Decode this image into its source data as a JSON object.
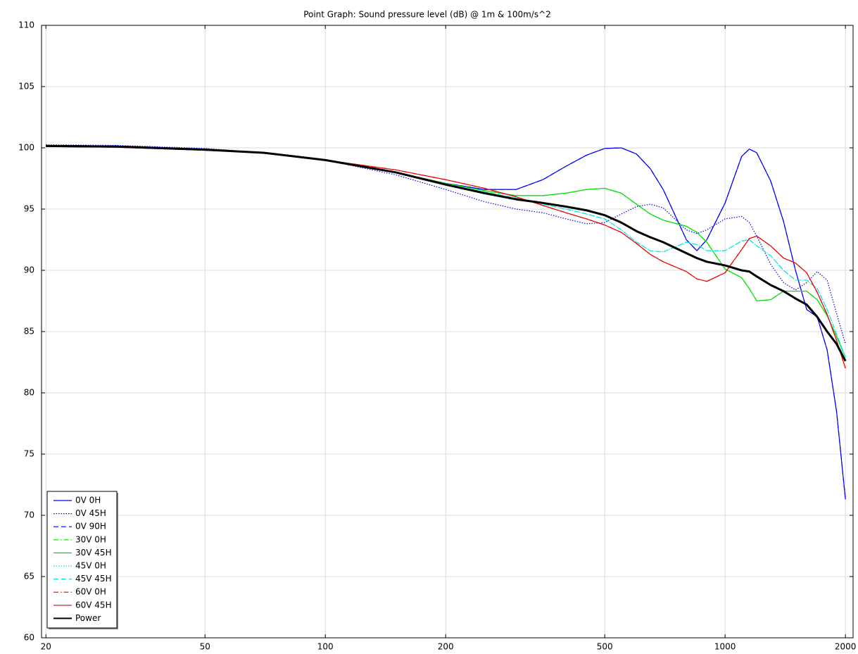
{
  "chart_data": {
    "type": "line",
    "title": "Point Graph: Sound pressure level (dB) @ 1m & 100m/s^2",
    "x": [
      20,
      30,
      50,
      70,
      100,
      150,
      200,
      250,
      300,
      350,
      400,
      450,
      500,
      550,
      600,
      650,
      700,
      800,
      850,
      900,
      1000,
      1100,
      1150,
      1200,
      1300,
      1400,
      1500,
      1600,
      1700,
      1800,
      1900,
      2000
    ],
    "series": [
      {
        "name": "0V 0H",
        "color": "#0000ff",
        "dash": "solid",
        "linewidth": 1.2,
        "values": [
          100.2,
          100.15,
          99.9,
          99.6,
          99.0,
          98.0,
          97.1,
          96.6,
          96.6,
          97.4,
          98.5,
          99.4,
          99.95,
          100.0,
          99.5,
          98.3,
          96.6,
          92.5,
          91.6,
          92.5,
          95.5,
          99.3,
          99.9,
          99.6,
          97.3,
          94.0,
          90.0,
          86.8,
          86.2,
          83.5,
          78.5,
          71.3
        ]
      },
      {
        "name": "0V 45H",
        "color": "#0000ff",
        "dash": "dotted",
        "linewidth": 1.2,
        "values": [
          100.25,
          100.2,
          99.95,
          99.6,
          99.0,
          97.8,
          96.6,
          95.6,
          95.0,
          94.7,
          94.2,
          93.8,
          93.9,
          94.6,
          95.2,
          95.4,
          95.1,
          93.3,
          93.0,
          93.3,
          94.2,
          94.4,
          93.9,
          92.8,
          90.5,
          89.0,
          88.4,
          89.0,
          89.9,
          89.2,
          86.5,
          84.0
        ]
      },
      {
        "name": "0V 90H",
        "color": "#0000ff",
        "dash": "dashed",
        "linewidth": 1.2,
        "values": [
          100.2,
          100.15,
          99.9,
          99.6,
          99.0,
          98.0,
          97.1,
          96.6,
          96.6,
          97.4,
          98.5,
          99.4,
          99.95,
          100.0,
          99.5,
          98.3,
          96.6,
          92.5,
          91.6,
          92.5,
          95.5,
          99.3,
          99.9,
          99.6,
          97.3,
          94.0,
          90.0,
          86.8,
          86.2,
          83.5,
          78.5,
          71.3
        ]
      },
      {
        "name": "30V 0H",
        "color": "#00dd00",
        "dash": "dashdot",
        "linewidth": 1.2,
        "values": [
          100.15,
          100.1,
          99.9,
          99.6,
          99.0,
          98.0,
          97.1,
          96.5,
          96.1,
          96.1,
          96.3,
          96.6,
          96.7,
          96.3,
          95.4,
          94.6,
          94.1,
          93.6,
          93.1,
          92.3,
          90.1,
          89.4,
          88.5,
          87.5,
          87.6,
          88.3,
          88.3,
          88.3,
          87.6,
          86.3,
          84.6,
          82.9
        ]
      },
      {
        "name": "30V 45H",
        "color": "#00dd00",
        "dash": "solid",
        "linewidth": 1.2,
        "values": [
          100.15,
          100.1,
          99.9,
          99.6,
          99.0,
          98.0,
          97.1,
          96.5,
          96.1,
          96.1,
          96.3,
          96.6,
          96.7,
          96.3,
          95.4,
          94.6,
          94.1,
          93.6,
          93.1,
          92.3,
          90.1,
          89.4,
          88.5,
          87.5,
          87.6,
          88.3,
          88.3,
          88.3,
          87.6,
          86.3,
          84.6,
          82.9
        ]
      },
      {
        "name": "45V 0H",
        "color": "#00e5e5",
        "dash": "dotted",
        "linewidth": 1.2,
        "values": [
          100.15,
          100.1,
          99.9,
          99.6,
          99.0,
          98.0,
          97.0,
          96.4,
          95.9,
          95.4,
          95.0,
          94.6,
          94.2,
          93.3,
          92.3,
          91.6,
          91.5,
          92.3,
          92.1,
          91.6,
          91.6,
          92.4,
          92.5,
          92.0,
          91.2,
          90.0,
          89.2,
          89.2,
          88.5,
          86.8,
          84.8,
          82.9
        ]
      },
      {
        "name": "45V 45H",
        "color": "#00e5e5",
        "dash": "dashed",
        "linewidth": 1.2,
        "values": [
          100.15,
          100.1,
          99.9,
          99.6,
          99.0,
          98.0,
          97.0,
          96.4,
          95.9,
          95.4,
          95.0,
          94.6,
          94.2,
          93.3,
          92.3,
          91.6,
          91.5,
          92.3,
          92.1,
          91.6,
          91.6,
          92.4,
          92.5,
          92.0,
          91.2,
          90.0,
          89.2,
          89.2,
          88.5,
          86.8,
          84.8,
          82.9
        ]
      },
      {
        "name": "60V 0H",
        "color": "#ee0000",
        "dash": "dashdot",
        "linewidth": 1.2,
        "values": [
          100.1,
          100.05,
          99.8,
          99.6,
          99.0,
          98.2,
          97.4,
          96.7,
          96.0,
          95.3,
          94.7,
          94.2,
          93.7,
          93.1,
          92.2,
          91.3,
          90.7,
          89.9,
          89.3,
          89.1,
          89.8,
          91.7,
          92.6,
          92.8,
          92.0,
          91.0,
          90.6,
          89.8,
          88.2,
          86.4,
          84.3,
          82.0
        ]
      },
      {
        "name": "60V 45H",
        "color": "#ee0000",
        "dash": "solid",
        "linewidth": 1.2,
        "values": [
          100.1,
          100.05,
          99.8,
          99.6,
          99.0,
          98.2,
          97.4,
          96.7,
          96.0,
          95.3,
          94.7,
          94.2,
          93.7,
          93.1,
          92.2,
          91.3,
          90.7,
          89.9,
          89.3,
          89.1,
          89.8,
          91.7,
          92.6,
          92.8,
          92.0,
          91.0,
          90.6,
          89.8,
          88.2,
          86.4,
          84.3,
          82.0
        ]
      },
      {
        "name": "Power",
        "color": "#000000",
        "dash": "solid",
        "linewidth": 3,
        "values": [
          100.15,
          100.1,
          99.85,
          99.6,
          99.0,
          98.0,
          97.0,
          96.3,
          95.8,
          95.5,
          95.2,
          94.9,
          94.5,
          93.9,
          93.2,
          92.7,
          92.3,
          91.4,
          91.0,
          90.7,
          90.4,
          90.0,
          89.9,
          89.5,
          88.8,
          88.3,
          87.7,
          87.2,
          86.2,
          85.0,
          84.0,
          82.6
        ]
      }
    ],
    "xlim": [
      19.5,
      2090
    ],
    "ylim": [
      60,
      110
    ],
    "xticks": [
      20,
      50,
      100,
      200,
      500,
      1000,
      2000
    ],
    "yticks": [
      60,
      65,
      70,
      75,
      80,
      85,
      90,
      95,
      100,
      105,
      110
    ],
    "xscale": "log",
    "grid": true,
    "legend": "lower-left"
  }
}
